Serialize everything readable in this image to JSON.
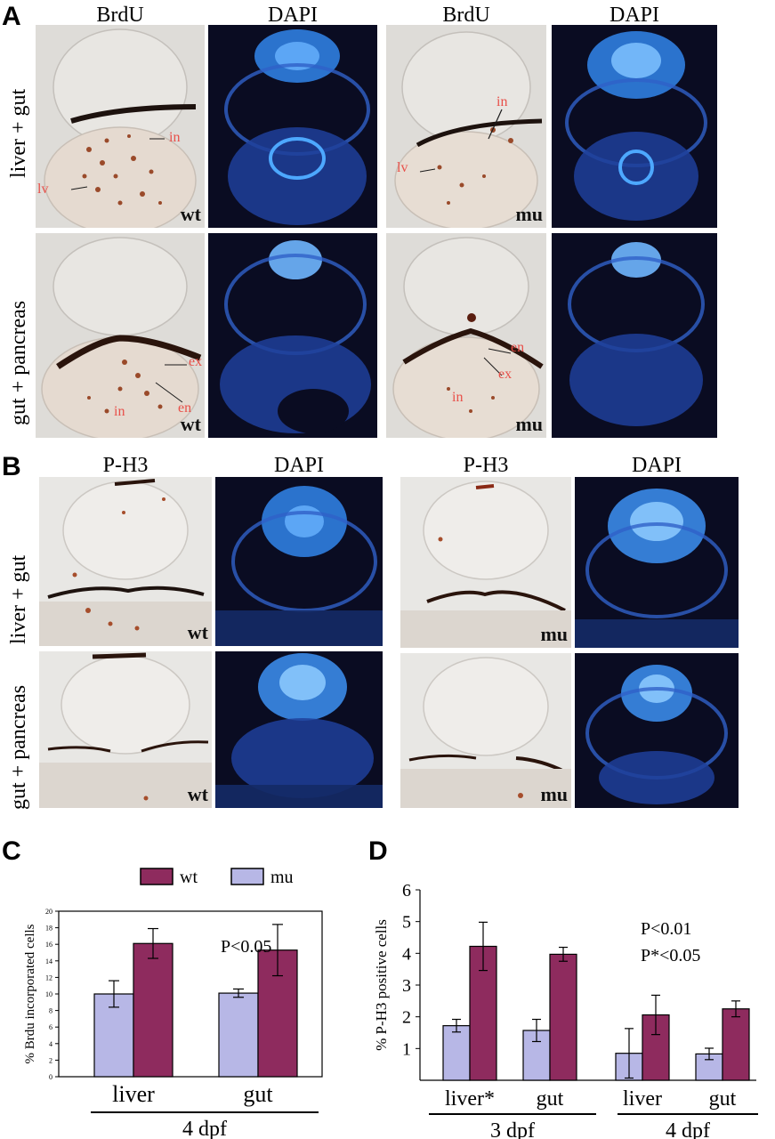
{
  "panels": {
    "A": {
      "letter": "A",
      "col_labels": [
        "BrdU",
        "DAPI",
        "BrdU",
        "DAPI"
      ],
      "row_labels": [
        "liver + gut",
        "gut + pancreas"
      ],
      "genotypes": [
        "wt",
        "mu",
        "wt",
        "mu"
      ],
      "annotations": {
        "r1_wt": [
          "in",
          "lv"
        ],
        "r1_mu": [
          "in",
          "lv"
        ],
        "r2_wt": [
          "ex",
          "en",
          "in"
        ],
        "r2_mu": [
          "en",
          "ex",
          "in"
        ]
      }
    },
    "B": {
      "letter": "B",
      "col_labels": [
        "P-H3",
        "DAPI",
        "P-H3",
        "DAPI"
      ],
      "row_labels": [
        "liver + gut",
        "gut + pancreas"
      ],
      "genotypes": [
        "wt",
        "mu",
        "wt",
        "mu"
      ]
    },
    "C": {
      "letter": "C"
    },
    "D": {
      "letter": "D"
    }
  },
  "colors": {
    "wt": "#8e2b5e",
    "mu": "#b7b7e6",
    "dapi_bg": "#0a0c22",
    "dapi_cell": "#3d78e8",
    "label_red": "#e8504a"
  },
  "chart_data": [
    {
      "type": "bar",
      "panel": "C",
      "title": "",
      "ylabel": "% Brdu incorporated cells",
      "xlabel": "",
      "categories": [
        "liver",
        "gut"
      ],
      "group_label": "4 dpf",
      "ylim": [
        0,
        20
      ],
      "yticks": [
        0,
        2,
        4,
        6,
        8,
        10,
        12,
        14,
        16,
        18,
        20
      ],
      "legend": {
        "placement": "top",
        "entries": [
          "wt",
          "mu"
        ]
      },
      "annotation": "P<0.05",
      "series": [
        {
          "name": "mu",
          "values": [
            10.0,
            10.1
          ],
          "errors": [
            1.6,
            0.5
          ]
        },
        {
          "name": "wt",
          "values": [
            16.1,
            15.3
          ],
          "errors": [
            1.8,
            3.1
          ]
        }
      ]
    },
    {
      "type": "bar",
      "panel": "D",
      "title": "",
      "ylabel": "% P-H3 positive cells",
      "xlabel": "",
      "categories": [
        "liver*",
        "gut",
        "liver",
        "gut"
      ],
      "groups": [
        {
          "label": "3 dpf",
          "categories": [
            0,
            1
          ]
        },
        {
          "label": "4 dpf",
          "categories": [
            2,
            3
          ]
        }
      ],
      "ylim": [
        0,
        6
      ],
      "yticks": [
        1,
        2,
        3,
        4,
        5,
        6
      ],
      "annotations": [
        "P<0.01",
        "P*<0.05"
      ],
      "series": [
        {
          "name": "mu",
          "values": [
            1.72,
            1.57,
            0.85,
            0.83
          ],
          "errors": [
            0.2,
            0.35,
            0.78,
            0.18
          ]
        },
        {
          "name": "wt",
          "values": [
            4.22,
            3.97,
            2.06,
            2.25
          ],
          "errors": [
            0.76,
            0.22,
            0.62,
            0.25
          ]
        }
      ]
    }
  ]
}
